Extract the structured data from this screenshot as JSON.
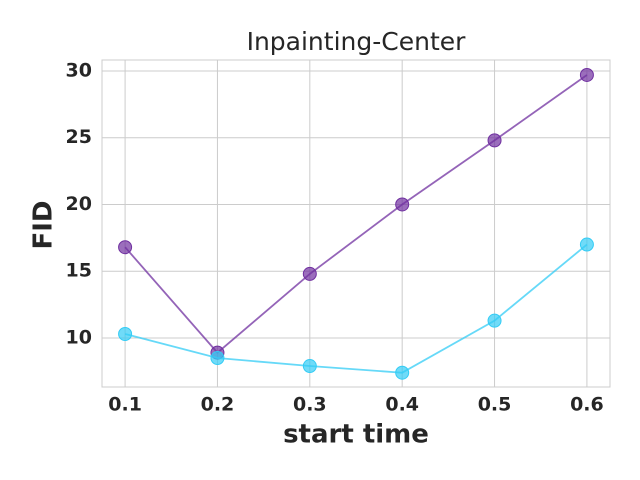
{
  "chart_data": {
    "type": "line",
    "title": "Inpainting-Center",
    "xlabel": "start time",
    "ylabel": "FID",
    "x": [
      0.1,
      0.2,
      0.3,
      0.4,
      0.5,
      0.6
    ],
    "series": [
      {
        "color": "#7030a0",
        "values": [
          16.8,
          8.9,
          14.8,
          20.0,
          24.8,
          29.7
        ]
      },
      {
        "color": "#33ccf5",
        "values": [
          10.3,
          8.5,
          7.9,
          7.4,
          11.3,
          17.0
        ]
      }
    ],
    "xlim": [
      0.075,
      0.625
    ],
    "xticks": [
      0.1,
      0.2,
      0.3,
      0.4,
      0.5,
      0.6
    ],
    "ylim": [
      6.33,
      30.82
    ],
    "yticks": [
      10,
      15,
      20,
      25,
      30
    ],
    "grid": true
  }
}
